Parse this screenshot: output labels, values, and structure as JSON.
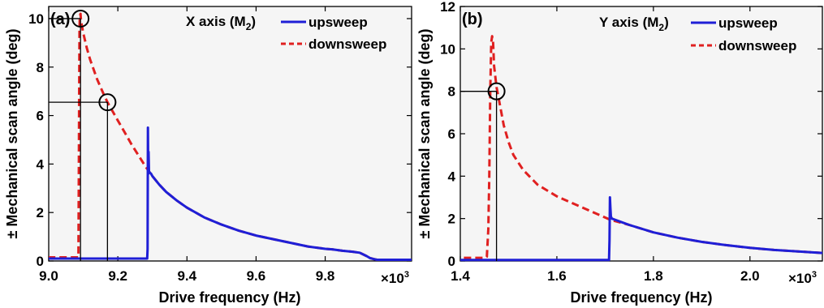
{
  "chart_data": [
    {
      "type": "line",
      "panel_label": "(a)",
      "title_main": "X axis (M",
      "title_sub": "2",
      "title_end": ")",
      "xlabel": "Drive frequency (Hz)",
      "ylabel": "± Mechanical scan angle (deg)",
      "x_multiplier": "×10",
      "x_multiplier_exp": "3",
      "xlim": [
        9.0,
        10.05
      ],
      "ylim": [
        0,
        10.5
      ],
      "xticks": [
        9.0,
        9.2,
        9.4,
        9.6,
        9.8
      ],
      "xtick_labels": [
        "9.0",
        "9.2",
        "9.4",
        "9.6",
        "9.8"
      ],
      "yticks": [
        0,
        2,
        4,
        6,
        8,
        10
      ],
      "ytick_labels": [
        "0",
        "2",
        "4",
        "6",
        "8",
        "10"
      ],
      "legend_position": "top-right",
      "series": [
        {
          "name": "upsweep",
          "color": "#1f1fd6",
          "style": "solid",
          "x": [
            9.0,
            9.05,
            9.1,
            9.15,
            9.2,
            9.25,
            9.285,
            9.286,
            9.287,
            9.288,
            9.289,
            9.29,
            9.292,
            9.296,
            9.3,
            9.32,
            9.34,
            9.37,
            9.4,
            9.45,
            9.5,
            9.55,
            9.6,
            9.65,
            9.7,
            9.75,
            9.8,
            9.82,
            9.85,
            9.88,
            9.9,
            9.92,
            9.93,
            9.94,
            9.95,
            10.0,
            10.05
          ],
          "y": [
            0.1,
            0.1,
            0.1,
            0.1,
            0.1,
            0.1,
            0.1,
            0.5,
            5.5,
            3.6,
            4.5,
            3.7,
            3.65,
            3.6,
            3.5,
            3.15,
            2.85,
            2.5,
            2.2,
            1.8,
            1.5,
            1.25,
            1.05,
            0.9,
            0.75,
            0.6,
            0.5,
            0.48,
            0.42,
            0.38,
            0.34,
            0.2,
            0.12,
            0.08,
            0.05,
            0.05,
            0.05
          ]
        },
        {
          "name": "downsweep",
          "color": "#e02020",
          "style": "dashed",
          "x": [
            10.05,
            10.0,
            9.95,
            9.94,
            9.93,
            9.92,
            9.9,
            9.88,
            9.85,
            9.82,
            9.8,
            9.75,
            9.7,
            9.65,
            9.6,
            9.55,
            9.5,
            9.45,
            9.4,
            9.37,
            9.34,
            9.32,
            9.3,
            9.28,
            9.26,
            9.24,
            9.22,
            9.2,
            9.18,
            9.17,
            9.16,
            9.14,
            9.12,
            9.11,
            9.1,
            9.095,
            9.093,
            9.092,
            9.09,
            9.089,
            9.088,
            9.087,
            9.086,
            9.05,
            9.0
          ],
          "y": [
            0.05,
            0.05,
            0.05,
            0.08,
            0.12,
            0.2,
            0.34,
            0.38,
            0.42,
            0.48,
            0.5,
            0.6,
            0.75,
            0.9,
            1.05,
            1.25,
            1.5,
            1.8,
            2.2,
            2.5,
            2.85,
            3.15,
            3.5,
            3.9,
            4.35,
            4.8,
            5.3,
            5.8,
            6.3,
            6.55,
            6.85,
            7.5,
            8.3,
            8.8,
            9.4,
            9.8,
            10.0,
            10.2,
            10.1,
            9.5,
            7.0,
            3.0,
            0.15,
            0.15,
            0.15
          ]
        }
      ],
      "annotations": [
        {
          "type": "circle-marker",
          "x": 9.092,
          "y": 10.0
        },
        {
          "type": "circle-marker",
          "x": 9.17,
          "y": 6.55
        }
      ]
    },
    {
      "type": "line",
      "panel_label": "(b)",
      "title_main": "Y axis (M",
      "title_sub": "2",
      "title_end": ")",
      "xlabel": "Drive frequency (Hz)",
      "ylabel": "± Mechanical scan angle (deg)",
      "x_multiplier": "×10",
      "x_multiplier_exp": "3",
      "xlim": [
        1.4,
        2.15
      ],
      "ylim": [
        0,
        12
      ],
      "xticks": [
        1.4,
        1.6,
        1.8,
        2.0
      ],
      "xtick_labels": [
        "1.4",
        "1.6",
        "1.8",
        "2.0"
      ],
      "yticks": [
        0,
        2,
        4,
        6,
        8,
        10,
        12
      ],
      "ytick_labels": [
        "0",
        "2",
        "4",
        "6",
        "8",
        "10",
        "12"
      ],
      "legend_position": "top-right",
      "series": [
        {
          "name": "upsweep",
          "color": "#1f1fd6",
          "style": "solid",
          "x": [
            1.4,
            1.45,
            1.5,
            1.55,
            1.6,
            1.65,
            1.7,
            1.708,
            1.709,
            1.71,
            1.711,
            1.712,
            1.714,
            1.72,
            1.75,
            1.8,
            1.85,
            1.9,
            1.95,
            2.0,
            2.05,
            2.1,
            2.15
          ],
          "y": [
            0.05,
            0.05,
            0.05,
            0.05,
            0.05,
            0.05,
            0.05,
            0.05,
            1.0,
            3.0,
            2.5,
            2.1,
            2.0,
            1.95,
            1.7,
            1.35,
            1.1,
            0.9,
            0.75,
            0.62,
            0.52,
            0.45,
            0.38
          ]
        },
        {
          "name": "downsweep",
          "color": "#e02020",
          "style": "dashed",
          "x": [
            2.15,
            2.1,
            2.05,
            2.0,
            1.95,
            1.9,
            1.85,
            1.8,
            1.75,
            1.71,
            1.68,
            1.65,
            1.6,
            1.56,
            1.53,
            1.51,
            1.5,
            1.49,
            1.48,
            1.475,
            1.47,
            1.468,
            1.466,
            1.464,
            1.462,
            1.46,
            1.458,
            1.455,
            1.45,
            1.4
          ],
          "y": [
            0.38,
            0.45,
            0.52,
            0.62,
            0.75,
            0.9,
            1.1,
            1.35,
            1.7,
            1.95,
            2.25,
            2.55,
            3.05,
            3.6,
            4.3,
            5.0,
            5.6,
            6.4,
            7.6,
            8.2,
            9.2,
            10.3,
            10.6,
            10.3,
            8.0,
            4.0,
            1.5,
            0.2,
            0.15,
            0.15
          ]
        }
      ],
      "annotations": [
        {
          "type": "circle-marker",
          "x": 1.475,
          "y": 8.0
        }
      ]
    }
  ]
}
